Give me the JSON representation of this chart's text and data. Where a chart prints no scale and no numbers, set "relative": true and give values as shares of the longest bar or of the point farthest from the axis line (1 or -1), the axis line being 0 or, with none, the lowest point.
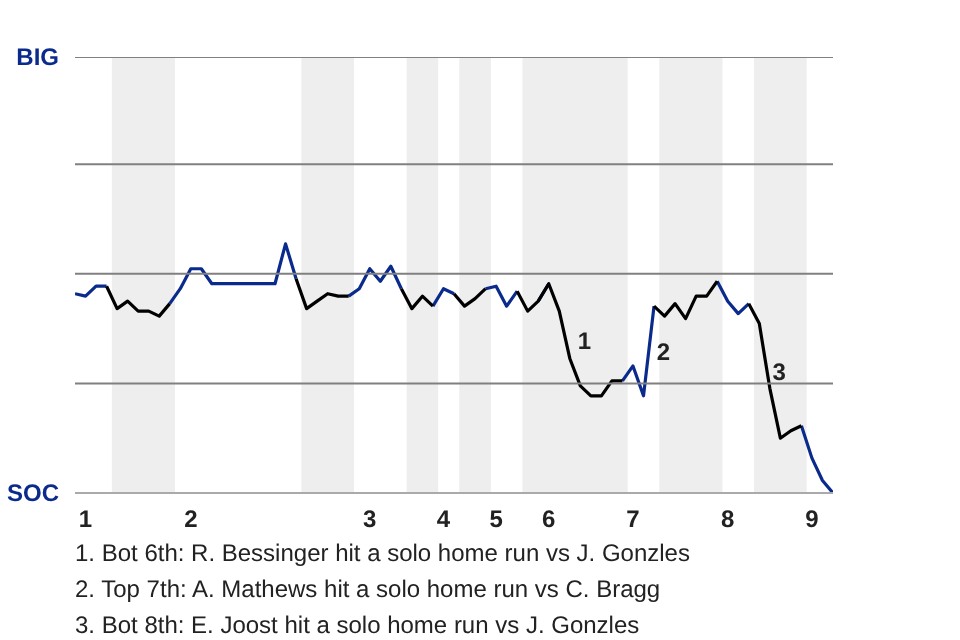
{
  "chart_data": {
    "type": "line",
    "relative": true,
    "categories": [
      null,
      "1",
      null,
      null,
      null,
      null,
      null,
      null,
      null,
      null,
      null,
      "2",
      null,
      null,
      null,
      null,
      null,
      null,
      null,
      null,
      null,
      null,
      null,
      null,
      null,
      null,
      null,
      null,
      "3",
      null,
      null,
      null,
      null,
      null,
      null,
      "4",
      null,
      null,
      null,
      null,
      "5",
      null,
      null,
      null,
      null,
      "6",
      null,
      null,
      null,
      null,
      null,
      null,
      null,
      "7",
      null,
      null,
      null,
      null,
      null,
      null,
      null,
      null,
      "8",
      null,
      null,
      null,
      null,
      null,
      null,
      null,
      "9",
      null,
      null
    ],
    "series": [
      {
        "color": "#0a2a8c",
        "values": [
          0.8,
          0.79,
          0.83,
          0.83,
          null,
          null,
          null,
          null,
          null,
          0.76,
          0.82,
          0.9,
          0.9,
          0.84,
          0.84,
          0.84,
          0.84,
          0.84,
          0.84,
          0.84,
          1,
          0.86,
          null,
          null,
          null,
          null,
          0.79,
          0.82,
          0.9,
          0.85,
          0.91,
          0.82,
          null,
          null,
          0.75,
          0.82,
          0.8,
          null,
          null,
          0.82,
          0.83,
          0.75,
          0.81,
          null,
          0.77,
          0.84,
          null,
          null,
          null,
          null,
          null,
          null,
          0.45,
          0.51,
          0.39,
          0.75,
          null,
          null,
          null,
          null,
          null,
          0.85,
          0.77,
          0.72,
          0.76,
          null,
          null,
          null,
          null,
          0.27,
          0.14,
          0.05,
          0
        ]
      },
      {
        "color": "#000000",
        "values": [
          null,
          null,
          null,
          0.83,
          0.74,
          0.77,
          0.73,
          0.73,
          0.71,
          0.76,
          null,
          null,
          null,
          null,
          null,
          null,
          null,
          null,
          null,
          null,
          null,
          0.86,
          0.74,
          0.77,
          0.8,
          0.79,
          0.79,
          null,
          null,
          null,
          null,
          0.82,
          0.74,
          0.79,
          0.75,
          null,
          0.8,
          0.75,
          0.78,
          0.82,
          null,
          null,
          0.81,
          0.73,
          0.77,
          0.84,
          0.73,
          0.54,
          0.43,
          0.39,
          0.39,
          0.45,
          0.45,
          null,
          null,
          0.75,
          0.71,
          0.76,
          0.7,
          0.79,
          0.79,
          0.85,
          null,
          null,
          0.76,
          0.68,
          0.42,
          0.22,
          0.25,
          0.27,
          null,
          null,
          null
        ]
      }
    ],
    "ref_lines": [
      {
        "axis": "y",
        "value": 0.44,
        "color": "#808080"
      },
      {
        "axis": "y",
        "value": 0.88,
        "color": "#808080"
      },
      {
        "axis": "y",
        "value": 1.32,
        "color": "#808080"
      },
      {
        "axis": "y",
        "value": 1.75,
        "color": "#808080"
      }
    ],
    "annotations": [
      "BIG",
      "SOC",
      "1",
      "2",
      "3",
      "1. Bot 6th: R. Bessinger hit a solo home run vs J. Gonzles",
      "2. Top 7th: A. Mathews hit a solo home run vs C. Bragg",
      "3. Bot 8th: E. Joost hit a solo home run vs J. Gonzles"
    ]
  }
}
